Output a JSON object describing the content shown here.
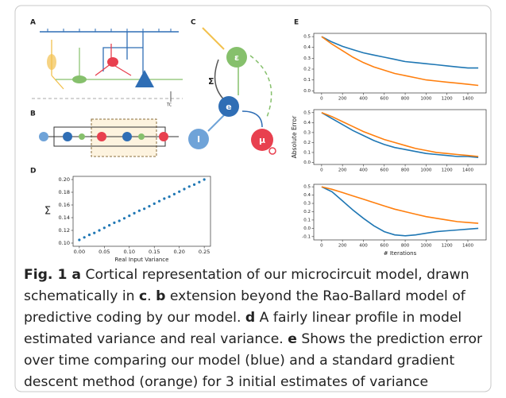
{
  "panels": [
    {
      "label": "A"
    },
    {
      "label": "B"
    },
    {
      "label": "C"
    },
    {
      "label": "D"
    },
    {
      "label": "E"
    }
  ],
  "diagram_a": {
    "tc": "TC"
  },
  "diagram_c": {
    "nodes": [
      "ε",
      "e",
      "I",
      "μ"
    ],
    "sigma": "Σ"
  },
  "chart_data": [
    {
      "type": "scatter",
      "ylabel": "Σ",
      "xlabel": "Real Input Variance",
      "color": "#1f77b4",
      "x": [
        0,
        0.01,
        0.02,
        0.03,
        0.04,
        0.05,
        0.06,
        0.07,
        0.08,
        0.09,
        0.1,
        0.11,
        0.12,
        0.13,
        0.14,
        0.15,
        0.16,
        0.17,
        0.18,
        0.19,
        0.2,
        0.21,
        0.22,
        0.23,
        0.24,
        0.25
      ],
      "values": [
        0.105,
        0.109,
        0.113,
        0.116,
        0.12,
        0.124,
        0.128,
        0.132,
        0.135,
        0.139,
        0.143,
        0.147,
        0.151,
        0.154,
        0.158,
        0.162,
        0.166,
        0.17,
        0.173,
        0.177,
        0.181,
        0.185,
        0.189,
        0.192,
        0.196,
        0.2
      ],
      "xlim": [
        -0.0125,
        0.2625
      ],
      "ylim": [
        0.095,
        0.205
      ],
      "xticks": [
        {
          "value": 0,
          "label": "0.00"
        },
        0.05,
        {
          "value": 0.1,
          "label": "0.10"
        },
        0.15,
        {
          "value": 0.2,
          "label": "0.20"
        },
        0.25
      ],
      "yticks": [
        {
          "value": 0.1,
          "label": "0.10"
        },
        0.12,
        0.14,
        0.16,
        0.18,
        {
          "value": 0.2,
          "label": "0.20"
        }
      ]
    },
    {
      "type": "line",
      "x": [
        0,
        100,
        200,
        300,
        400,
        500,
        600,
        700,
        800,
        900,
        1000,
        1100,
        1200,
        1300,
        1400,
        1500
      ],
      "series": [
        {
          "color": "#1f77b4",
          "values": [
            0.5,
            0.45,
            0.41,
            0.38,
            0.35,
            0.33,
            0.31,
            0.29,
            0.27,
            0.26,
            0.25,
            0.24,
            0.23,
            0.22,
            0.21,
            0.21
          ]
        },
        {
          "color": "#ff7f0e",
          "values": [
            0.5,
            0.43,
            0.37,
            0.31,
            0.26,
            0.22,
            0.19,
            0.16,
            0.14,
            0.12,
            0.1,
            0.09,
            0.08,
            0.07,
            0.06,
            0.05
          ]
        }
      ],
      "xlim": [
        -75,
        1575
      ],
      "ylim": [
        -0.02,
        0.53
      ],
      "xticks": [
        0,
        200,
        400,
        600,
        800,
        1000,
        1200,
        1400
      ],
      "yticks": [
        {
          "value": 0,
          "label": "0.0"
        },
        0.1,
        0.2,
        0.3,
        0.4,
        0.5
      ]
    },
    {
      "type": "line",
      "ylabel": "Absolute Error",
      "x": [
        0,
        100,
        200,
        300,
        400,
        500,
        600,
        700,
        800,
        900,
        1000,
        1100,
        1200,
        1300,
        1400,
        1500
      ],
      "series": [
        {
          "color": "#1f77b4",
          "values": [
            0.5,
            0.44,
            0.38,
            0.32,
            0.27,
            0.22,
            0.18,
            0.15,
            0.13,
            0.11,
            0.09,
            0.08,
            0.07,
            0.06,
            0.06,
            0.05
          ]
        },
        {
          "color": "#ff7f0e",
          "values": [
            0.5,
            0.46,
            0.41,
            0.36,
            0.31,
            0.27,
            0.23,
            0.2,
            0.17,
            0.14,
            0.12,
            0.1,
            0.09,
            0.08,
            0.07,
            0.06
          ]
        }
      ],
      "xlim": [
        -75,
        1575
      ],
      "ylim": [
        -0.02,
        0.53
      ],
      "xticks": [
        0,
        200,
        400,
        600,
        800,
        1000,
        1200,
        1400
      ],
      "yticks": [
        {
          "value": 0,
          "label": "0.0"
        },
        0.1,
        0.2,
        0.3,
        0.4,
        0.5
      ]
    },
    {
      "type": "line",
      "xlabel": "# Iterations",
      "x": [
        0,
        100,
        200,
        300,
        400,
        500,
        600,
        700,
        800,
        900,
        1000,
        1100,
        1200,
        1300,
        1400,
        1500
      ],
      "series": [
        {
          "color": "#1f77b4",
          "values": [
            0.5,
            0.44,
            0.33,
            0.22,
            0.12,
            0.03,
            -0.04,
            -0.08,
            -0.09,
            -0.08,
            -0.06,
            -0.04,
            -0.03,
            -0.02,
            -0.01,
            0
          ]
        },
        {
          "color": "#ff7f0e",
          "values": [
            0.5,
            0.47,
            0.43,
            0.39,
            0.35,
            0.31,
            0.27,
            0.23,
            0.2,
            0.17,
            0.14,
            0.12,
            0.1,
            0.08,
            0.07,
            0.06
          ]
        }
      ],
      "xlim": [
        -75,
        1575
      ],
      "ylim": [
        -0.14,
        0.53
      ],
      "xticks": [
        0,
        200,
        400,
        600,
        800,
        1000,
        1200,
        1400
      ],
      "yticks": [
        -0.1,
        {
          "value": 0,
          "label": "0.0"
        },
        0.1,
        0.2,
        0.3,
        0.4,
        0.5
      ]
    }
  ],
  "caption": [
    {
      "text": "Fig. 1",
      "bold": true
    },
    {
      "text": " a",
      "bold": true
    },
    {
      "text": " Cortical representation of our microcircuit model, drawn schematically in ",
      "bold": false
    },
    {
      "text": "c",
      "bold": true
    },
    {
      "text": ". ",
      "bold": false
    },
    {
      "text": "b",
      "bold": true
    },
    {
      "text": " extension beyond the Rao-Ballard model of predictive coding by our model. ",
      "bold": false
    },
    {
      "text": "d",
      "bold": true
    },
    {
      "text": " A fairly linear profile in model estimated variance and real variance. ",
      "bold": false
    },
    {
      "text": "e",
      "bold": true
    },
    {
      "text": " Shows the prediction error over time comparing our model (blue) and a standard gradient descent method (orange) for 3 initial estimates of variance",
      "bold": false
    }
  ]
}
